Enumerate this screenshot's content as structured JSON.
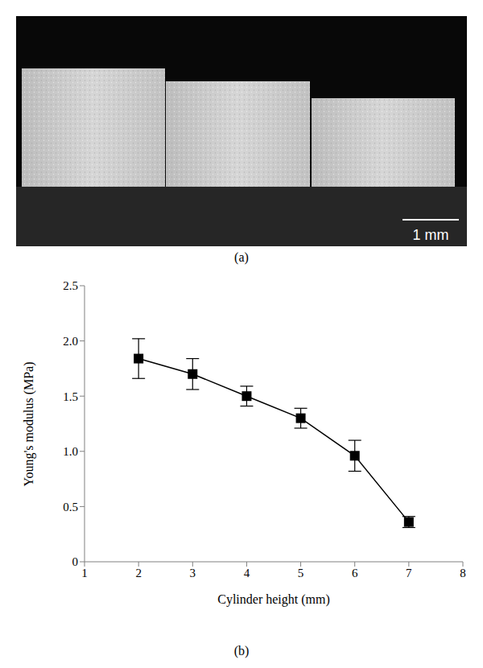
{
  "image": {
    "label": "(a)",
    "scale_bar": "1 mm"
  },
  "chart_data": {
    "type": "line",
    "label": "(b)",
    "x_label": "Cylinder height (mm)",
    "y_label": "Young's modulus (MPa)",
    "x": [
      2,
      3,
      4,
      5,
      6,
      7
    ],
    "values": [
      1.84,
      1.7,
      1.5,
      1.3,
      0.96,
      0.36
    ],
    "error": [
      0.18,
      0.14,
      0.09,
      0.09,
      0.14,
      0.05
    ],
    "color": "#000000",
    "marker": "square",
    "line_style": "solid",
    "xlim": [
      1,
      8
    ],
    "xticks": [
      1,
      2,
      3,
      4,
      5,
      6,
      7,
      8
    ],
    "ylim": [
      0,
      2.5
    ],
    "yticks": [
      0,
      0.5,
      {
        "value": 1,
        "label": "1.0"
      },
      {
        "value": 1.5,
        "label": "1.5"
      },
      {
        "value": 2,
        "label": "2.0"
      },
      {
        "value": 2.5,
        "label": "2.5"
      }
    ],
    "grid": false
  }
}
